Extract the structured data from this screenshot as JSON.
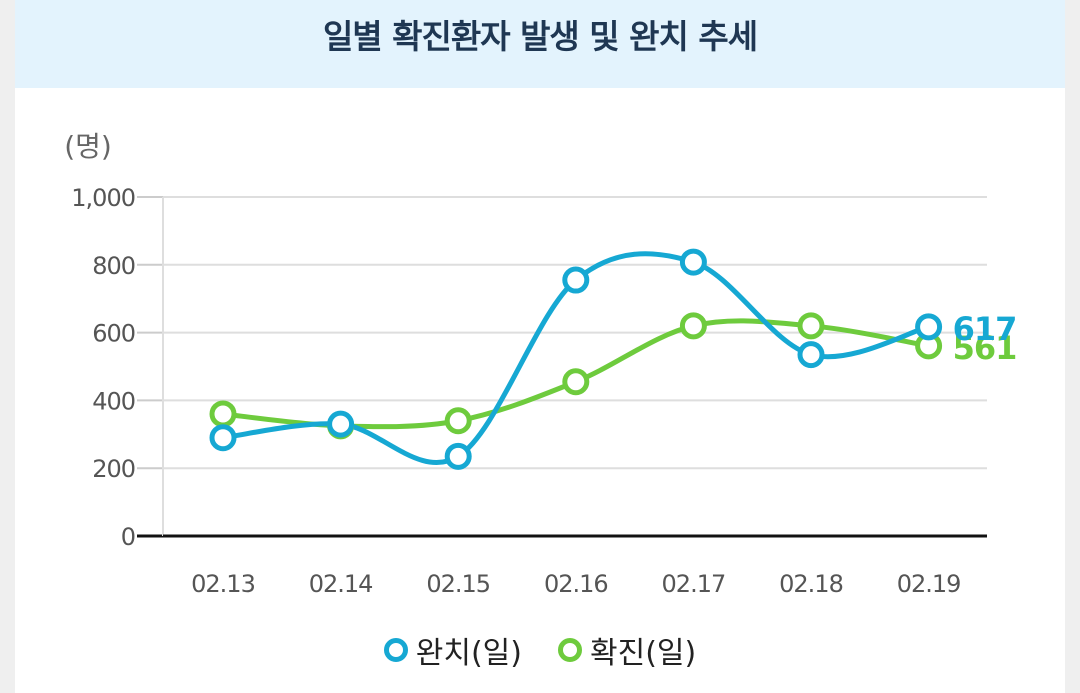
{
  "header": {
    "title": "일별 확진환자 발생 및 완치 추세"
  },
  "chart_data": {
    "type": "line",
    "title": "일별 확진환자 발생 및 완치 추세",
    "ylabel": "(명)",
    "xlabel": "",
    "categories": [
      "02.13",
      "02.14",
      "02.15",
      "02.16",
      "02.17",
      "02.18",
      "02.19"
    ],
    "ylim": [
      0,
      1000
    ],
    "yticks": [
      0,
      200,
      400,
      600,
      800,
      1000
    ],
    "ytick_labels": [
      "0",
      "200",
      "400",
      "600",
      "800",
      "1,000"
    ],
    "grid": true,
    "legend_position": "bottom-center",
    "series": [
      {
        "name": "완치(일)",
        "color": "#16a8d3",
        "values": [
          290,
          330,
          235,
          755,
          808,
          535,
          617
        ],
        "end_label": "617"
      },
      {
        "name": "확진(일)",
        "color": "#6ecb3d",
        "values": [
          360,
          325,
          340,
          455,
          620,
          620,
          561
        ],
        "end_label": "561"
      }
    ]
  }
}
